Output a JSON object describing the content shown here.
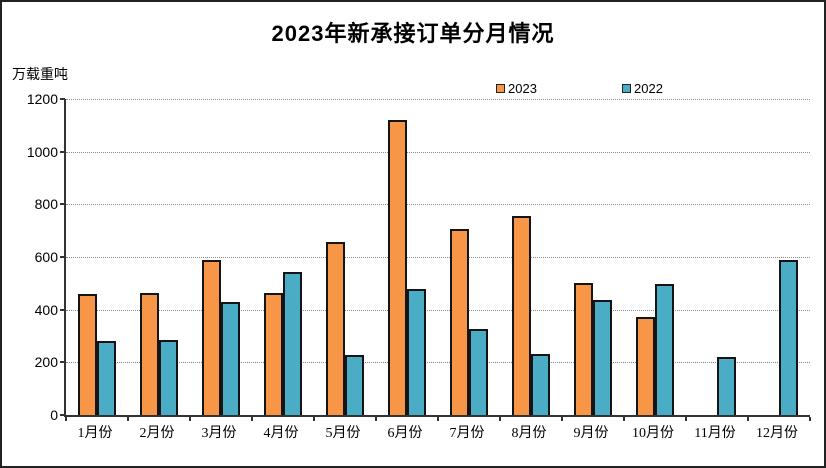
{
  "title": "2023年新承接订单分月情况",
  "y_axis_unit": "万载重吨",
  "legend": [
    {
      "label": "2023",
      "color": "#F79646"
    },
    {
      "label": "2022",
      "color": "#4BACC6"
    }
  ],
  "colors": {
    "bar_2023": "#F79646",
    "bar_2022": "#4BACC6",
    "bar_border": "#141414",
    "gridline": "#8a8a8a"
  },
  "chart_data": {
    "type": "bar",
    "title": "2023年新承接订单分月情况",
    "ylabel": "万载重吨",
    "xlabel": "",
    "categories": [
      "1月份",
      "2月份",
      "3月份",
      "4月份",
      "5月份",
      "6月份",
      "7月份",
      "8月份",
      "9月份",
      "10月份",
      "11月份",
      "12月份"
    ],
    "series": [
      {
        "name": "2023",
        "color": "#F79646",
        "values": [
          460,
          463,
          590,
          462,
          658,
          1122,
          708,
          754,
          503,
          372,
          0,
          0
        ]
      },
      {
        "name": "2022",
        "color": "#4BACC6",
        "values": [
          282,
          284,
          428,
          542,
          228,
          478,
          325,
          232,
          438,
          496,
          220,
          590
        ]
      }
    ],
    "ylim": [
      0,
      1200
    ],
    "ytick_interval": 200,
    "yticks": [
      0,
      200,
      400,
      600,
      800,
      1000,
      1200
    ],
    "grid": "horizontal-dotted",
    "legend_position": "top-center",
    "note_missing_bars": "2023 series has no bar in 11月份 and 12月份 (value 0)"
  }
}
